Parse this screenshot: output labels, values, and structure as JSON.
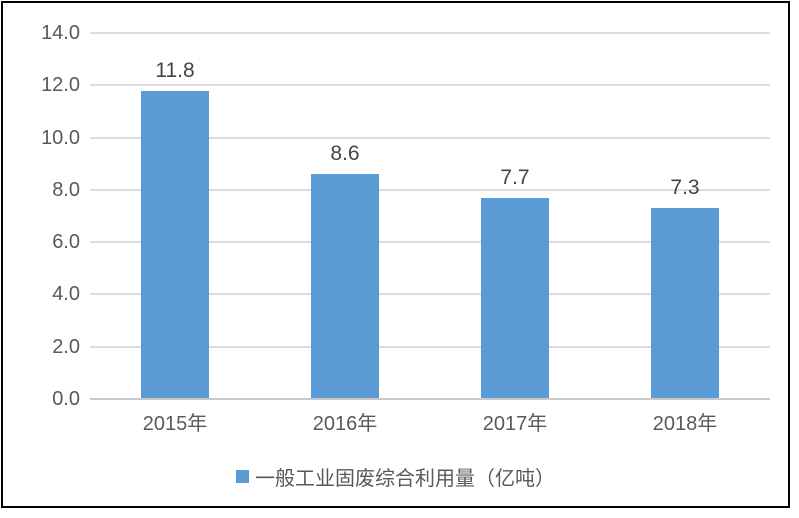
{
  "chart_data": {
    "type": "bar",
    "categories": [
      "2015年",
      "2016年",
      "2017年",
      "2018年"
    ],
    "values": [
      11.8,
      8.6,
      7.7,
      7.3
    ],
    "data_labels": [
      "11.8",
      "8.6",
      "7.7",
      "7.3"
    ],
    "legend": "一般工业固废综合利用量（亿吨）",
    "title": "",
    "xlabel": "",
    "ylabel": "",
    "ylim": [
      0,
      14
    ],
    "ytick_step": 2,
    "ytick_labels": [
      "0.0",
      "2.0",
      "4.0",
      "6.0",
      "8.0",
      "10.0",
      "12.0",
      "14.0"
    ],
    "grid": true,
    "legend_position": "bottom"
  },
  "colors": {
    "bar": "#5B9BD5",
    "gridline": "#DCDCDC",
    "axis_line": "#C9C9C9",
    "tick_text": "#595959",
    "data_label_text": "#444444",
    "frame_border": "#000000",
    "background": "#FFFFFF"
  }
}
